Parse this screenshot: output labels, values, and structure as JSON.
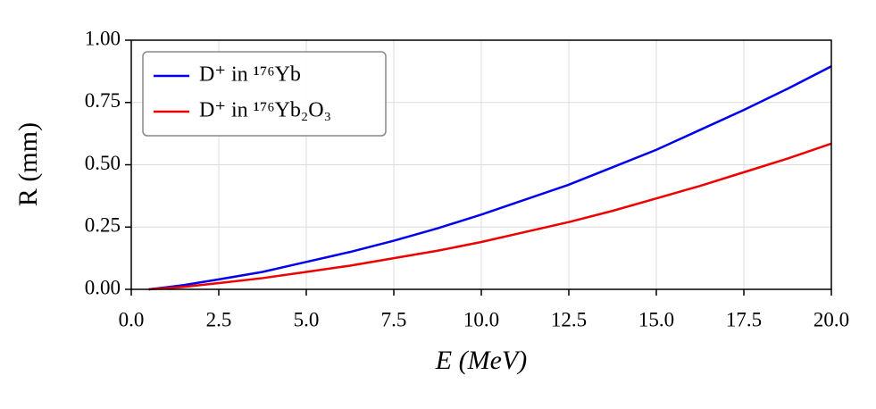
{
  "chart_data": {
    "type": "line",
    "xlabel": "E (MeV)",
    "ylabel": "R (mm)",
    "x": [
      0.5,
      1,
      1.5,
      2.5,
      3.75,
      5,
      6.25,
      7.5,
      8.75,
      10,
      11.25,
      12.5,
      13.75,
      15,
      16.25,
      17.5,
      18.75,
      20
    ],
    "series": [
      {
        "name": "D⁺ in ¹⁷⁶Yb",
        "color": "#0000ee",
        "values": [
          0,
          0.008,
          0.017,
          0.04,
          0.07,
          0.11,
          0.15,
          0.195,
          0.245,
          0.3,
          0.36,
          0.42,
          0.49,
          0.56,
          0.64,
          0.72,
          0.805,
          0.895
        ]
      },
      {
        "name": "D⁺ in ¹⁷⁶Yb₂O₃",
        "color": "#ee0000",
        "values": [
          0,
          0.005,
          0.01,
          0.025,
          0.045,
          0.07,
          0.095,
          0.125,
          0.155,
          0.19,
          0.23,
          0.27,
          0.315,
          0.365,
          0.415,
          0.47,
          0.525,
          0.585
        ]
      }
    ],
    "xlim": [
      0,
      20
    ],
    "ylim": [
      0,
      1
    ],
    "xticks": [
      {
        "value": 0,
        "label": "0.0"
      },
      {
        "value": 2.5,
        "label": "2.5"
      },
      {
        "value": 5,
        "label": "5.0"
      },
      {
        "value": 7.5,
        "label": "7.5"
      },
      {
        "value": 10,
        "label": "10.0"
      },
      {
        "value": 12.5,
        "label": "12.5"
      },
      {
        "value": 15,
        "label": "15.0"
      },
      {
        "value": 17.5,
        "label": "17.5"
      },
      {
        "value": 20,
        "label": "20.0"
      }
    ],
    "yticks": [
      {
        "value": 0,
        "label": "0.00"
      },
      {
        "value": 0.25,
        "label": "0.25"
      },
      {
        "value": 0.5,
        "label": "0.50"
      },
      {
        "value": 0.75,
        "label": "0.75"
      },
      {
        "value": 1,
        "label": "1.00"
      }
    ],
    "grid": true,
    "legend": "upper left"
  }
}
